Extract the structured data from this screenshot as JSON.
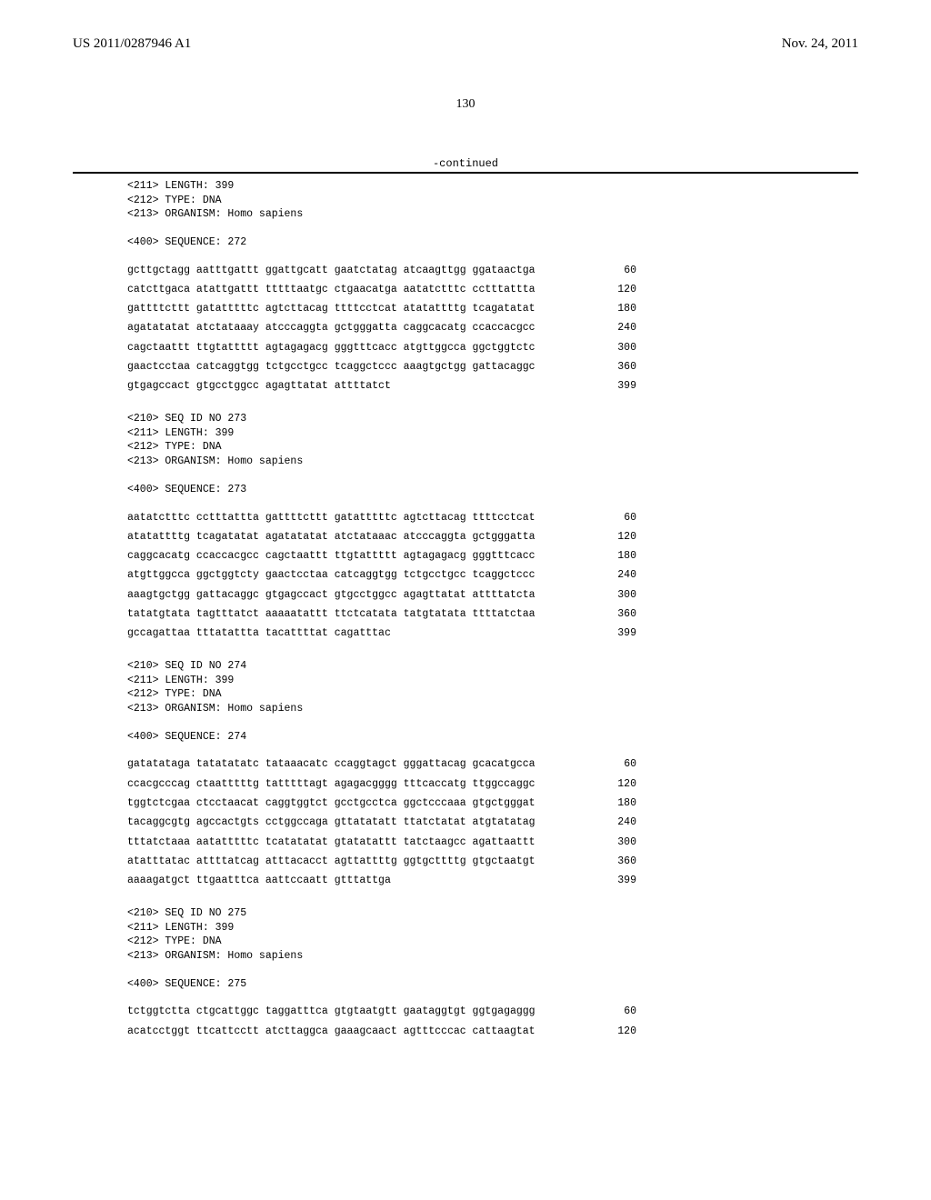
{
  "header": {
    "pub_number": "US 2011/0287946 A1",
    "date": "Nov. 24, 2011"
  },
  "page_number": "130",
  "continued_label": "-continued",
  "blocks": [
    {
      "meta": [
        "<211> LENGTH: 399",
        "<212> TYPE: DNA",
        "<213> ORGANISM: Homo sapiens",
        "",
        "<400> SEQUENCE: 272"
      ],
      "rows": [
        {
          "seq": "gcttgctagg aatttgattt ggattgcatt gaatctatag atcaagttgg ggataactga",
          "pos": "60"
        },
        {
          "seq": "catcttgaca atattgattt tttttaatgc ctgaacatga aatatctttc cctttattta",
          "pos": "120"
        },
        {
          "seq": "gattttcttt gatatttttc agtcttacag ttttcctcat atatattttg tcagatatat",
          "pos": "180"
        },
        {
          "seq": "agatatatat atctataaay atcccaggta gctgggatta caggcacatg ccaccacgcc",
          "pos": "240"
        },
        {
          "seq": "cagctaattt ttgtattttt agtagagacg gggtttcacc atgttggcca ggctggtctc",
          "pos": "300"
        },
        {
          "seq": "gaactcctaa catcaggtgg tctgcctgcc tcaggctccc aaagtgctgg gattacaggc",
          "pos": "360"
        },
        {
          "seq": "gtgagccact gtgcctggcc agagttatat attttatct",
          "pos": "399"
        }
      ]
    },
    {
      "meta": [
        "<210> SEQ ID NO 273",
        "<211> LENGTH: 399",
        "<212> TYPE: DNA",
        "<213> ORGANISM: Homo sapiens",
        "",
        "<400> SEQUENCE: 273"
      ],
      "rows": [
        {
          "seq": "aatatctttc cctttattta gattttcttt gatatttttc agtcttacag ttttcctcat",
          "pos": "60"
        },
        {
          "seq": "atatattttg tcagatatat agatatatat atctataaac atcccaggta gctgggatta",
          "pos": "120"
        },
        {
          "seq": "caggcacatg ccaccacgcc cagctaattt ttgtattttt agtagagacg gggtttcacc",
          "pos": "180"
        },
        {
          "seq": "atgttggcca ggctggtcty gaactcctaa catcaggtgg tctgcctgcc tcaggctccc",
          "pos": "240"
        },
        {
          "seq": "aaagtgctgg gattacaggc gtgagccact gtgcctggcc agagttatat attttatcta",
          "pos": "300"
        },
        {
          "seq": "tatatgtata tagtttatct aaaaatattt ttctcatata tatgtatata ttttatctaa",
          "pos": "360"
        },
        {
          "seq": "gccagattaa tttatattta tacattttat cagatttac",
          "pos": "399"
        }
      ]
    },
    {
      "meta": [
        "<210> SEQ ID NO 274",
        "<211> LENGTH: 399",
        "<212> TYPE: DNA",
        "<213> ORGANISM: Homo sapiens",
        "",
        "<400> SEQUENCE: 274"
      ],
      "rows": [
        {
          "seq": "gatatataga tatatatatc tataaacatc ccaggtagct gggattacag gcacatgcca",
          "pos": "60"
        },
        {
          "seq": "ccacgcccag ctaatttttg tatttttagt agagacgggg tttcaccatg ttggccaggc",
          "pos": "120"
        },
        {
          "seq": "tggtctcgaa ctcctaacat caggtggtct gcctgcctca ggctcccaaa gtgctgggat",
          "pos": "180"
        },
        {
          "seq": "tacaggcgtg agccactgts cctggccaga gttatatatt ttatctatat atgtatatag",
          "pos": "240"
        },
        {
          "seq": "tttatctaaa aatatttttc tcatatatat gtatatattt tatctaagcc agattaattt",
          "pos": "300"
        },
        {
          "seq": "atatttatac attttatcag atttacacct agttattttg ggtgcttttg gtgctaatgt",
          "pos": "360"
        },
        {
          "seq": "aaaagatgct ttgaatttca aattccaatt gtttattga",
          "pos": "399"
        }
      ]
    },
    {
      "meta": [
        "<210> SEQ ID NO 275",
        "<211> LENGTH: 399",
        "<212> TYPE: DNA",
        "<213> ORGANISM: Homo sapiens",
        "",
        "<400> SEQUENCE: 275"
      ],
      "rows": [
        {
          "seq": "tctggtctta ctgcattggc taggatttca gtgtaatgtt gaataggtgt ggtgagaggg",
          "pos": "60"
        },
        {
          "seq": "acatcctggt ttcattcctt atcttaggca gaaagcaact agtttcccac cattaagtat",
          "pos": "120"
        }
      ]
    }
  ]
}
